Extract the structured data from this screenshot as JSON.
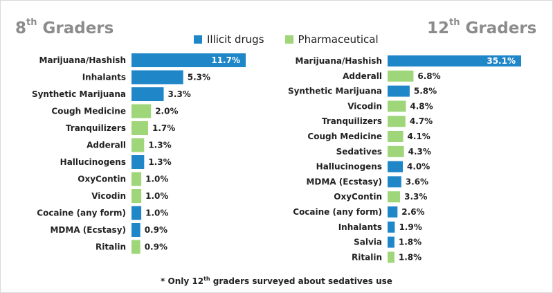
{
  "titles": {
    "left_main": "8",
    "left_sup": "th",
    "left_rest": " Graders",
    "right_main": "12",
    "right_sup": "th",
    "right_rest": " Graders"
  },
  "legend": {
    "illicit": "Illicit drugs",
    "pharma": "Pharmaceutical"
  },
  "colors": {
    "illicit": "#1f86c8",
    "pharma": "#9fd67a"
  },
  "footnote": {
    "pre": "* Only 12",
    "sup": "th",
    "post": " graders surveyed about sedatives use"
  },
  "chart_data": [
    {
      "type": "bar",
      "orientation": "horizontal",
      "title": "8th Graders",
      "categories": [
        "Marijuana/Hashish",
        "Inhalants",
        "Synthetic Marijuana",
        "Cough Medicine",
        "Tranquilizers",
        "Adderall",
        "Hallucinogens",
        "OxyContin",
        "Vicodin",
        "Cocaine (any form)",
        "MDMA (Ecstasy)",
        "Ritalin"
      ],
      "values": [
        11.7,
        5.3,
        3.3,
        2.0,
        1.7,
        1.3,
        1.3,
        1.0,
        1.0,
        1.0,
        0.9,
        0.9
      ],
      "labels": [
        "11.7%",
        "5.3%",
        "3.3%",
        "2.0%",
        "1.7%",
        "1.3%",
        "1.3%",
        "1.0%",
        "1.0%",
        "1.0%",
        "0.9%",
        "0.9%"
      ],
      "groups": [
        "illicit",
        "illicit",
        "illicit",
        "pharma",
        "pharma",
        "pharma",
        "illicit",
        "pharma",
        "pharma",
        "illicit",
        "illicit",
        "pharma"
      ]
    },
    {
      "type": "bar",
      "orientation": "horizontal",
      "title": "12th Graders",
      "categories": [
        "Marijuana/Hashish",
        "Adderall",
        "Synthetic Marijuana",
        "Vicodin",
        "Tranquilizers",
        "Cough Medicine",
        "Sedatives",
        "Hallucinogens",
        "MDMA (Ecstasy)",
        "OxyContin",
        "Cocaine (any form)",
        "Inhalants",
        "Salvia",
        "Ritalin"
      ],
      "values": [
        35.1,
        6.8,
        5.8,
        4.8,
        4.7,
        4.1,
        4.3,
        4.0,
        3.6,
        3.3,
        2.6,
        1.9,
        1.8,
        1.8
      ],
      "labels": [
        "35.1%",
        "6.8%",
        "5.8%",
        "4.8%",
        "4.7%",
        "4.1%",
        "4.3%",
        "4.0%",
        "3.6%",
        "3.3%",
        "2.6%",
        "1.9%",
        "1.8%",
        "1.8%"
      ],
      "groups": [
        "illicit",
        "pharma",
        "illicit",
        "pharma",
        "pharma",
        "pharma",
        "pharma",
        "illicit",
        "illicit",
        "pharma",
        "illicit",
        "illicit",
        "illicit",
        "pharma"
      ]
    }
  ]
}
